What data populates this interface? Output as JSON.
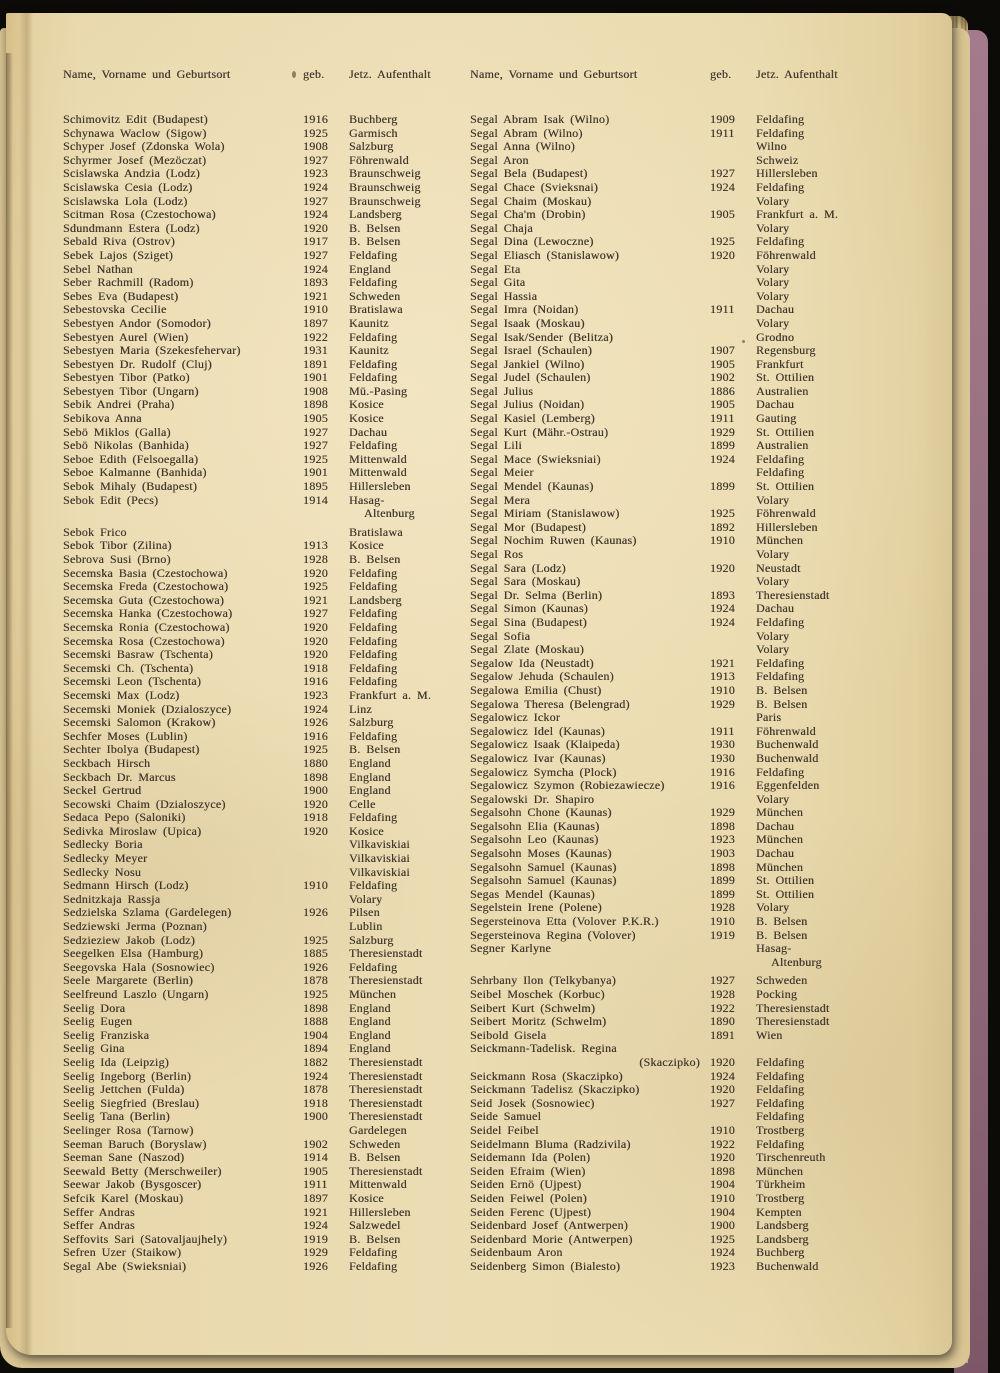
{
  "colors": {
    "paper": "#ead9ae",
    "ink": "#3e352a",
    "cover_edge": "#96707f",
    "page_stack": "#cdb887",
    "background": "#0d0b07"
  },
  "header": {
    "name": "Name, Vorname und Geburtsort",
    "geb": "geb.",
    "residence": "Jetz. Aufenthalt"
  },
  "columns": [
    {
      "entries": [
        {
          "n": "Schimovitz Edit (Budapest)",
          "g": "1916",
          "r": "Buchberg"
        },
        {
          "n": "Schynawa Waclow (Sigow)",
          "g": "1925",
          "r": "Garmisch"
        },
        {
          "n": "Schyper Josef (Zdonska Wola)",
          "g": "1908",
          "r": "Salzburg"
        },
        {
          "n": "Schyrmer Josef (Mezöczat)",
          "g": "1927",
          "r": "Föhrenwald"
        },
        {
          "n": "Scislawska Andzia (Lodz)",
          "g": "1923",
          "r": "Braunschweig"
        },
        {
          "n": "Scislawska Cesia (Lodz)",
          "g": "1924",
          "r": "Braunschweig"
        },
        {
          "n": "Scislawska Lola (Lodz)",
          "g": "1927",
          "r": "Braunschweig"
        },
        {
          "n": "Scitman Rosa (Czestochowa)",
          "g": "1924",
          "r": "Landsberg"
        },
        {
          "n": "Sdundmann Estera (Lodz)",
          "g": "1920",
          "r": "B. Belsen"
        },
        {
          "n": "Sebald Riva (Ostrov)",
          "g": "1917",
          "r": "B. Belsen"
        },
        {
          "n": "Sebek Lajos (Sziget)",
          "g": "1927",
          "r": "Feldafing"
        },
        {
          "n": "Sebel Nathan",
          "g": "1924",
          "r": "England"
        },
        {
          "n": "Seber Rachmill (Radom)",
          "g": "1893",
          "r": "Feldafing"
        },
        {
          "n": "Sebes Eva (Budapest)",
          "g": "1921",
          "r": "Schweden"
        },
        {
          "n": "Sebestovska Cecilie",
          "g": "1910",
          "r": "Bratislawa"
        },
        {
          "n": "Sebestyen Andor (Somodor)",
          "g": "1897",
          "r": "Kaunitz"
        },
        {
          "n": "Sebestyen Aurel (Wien)",
          "g": "1922",
          "r": "Feldafing"
        },
        {
          "n": "Sebestyen Maria (Szekesfehervar)",
          "g": "1931",
          "r": "Kaunitz"
        },
        {
          "n": "Sebestyen Dr. Rudolf (Cluj)",
          "g": "1891",
          "r": "Feldafing"
        },
        {
          "n": "Sebestyen Tibor (Patko)",
          "g": "1901",
          "r": "Feldafing"
        },
        {
          "n": "Sebestyen Tibor (Ungarn)",
          "g": "1908",
          "r": "Mü.-Pasing"
        },
        {
          "n": "Sebik Andrei (Praha)",
          "g": "1898",
          "r": "Kosice"
        },
        {
          "n": "Sebikova Anna",
          "g": "1905",
          "r": "Kosice"
        },
        {
          "n": "Sebö Miklos (Galla)",
          "g": "1927",
          "r": "Dachau"
        },
        {
          "n": "Sebö Nikolas (Banhida)",
          "g": "1927",
          "r": "Feldafing"
        },
        {
          "n": "Seboe Edith (Felsoegalla)",
          "g": "1925",
          "r": "Mittenwald"
        },
        {
          "n": "Seboe Kalmanne (Banhida)",
          "g": "1901",
          "r": "Mittenwald"
        },
        {
          "n": "Sebok Mihaly (Budapest)",
          "g": "1895",
          "r": "Hillersleben"
        },
        {
          "n": "Sebok Edit (Pecs)",
          "g": "1914",
          "r": "Hasag-"
        },
        {
          "n": "",
          "g": "",
          "r": "Altenburg",
          "ind": true,
          "gap": true
        },
        {
          "n": "Sebok Frico",
          "g": "",
          "r": "Bratislawa"
        },
        {
          "n": "Sebok Tibor (Zilina)",
          "g": "1913",
          "r": "Kosice"
        },
        {
          "n": "Sebrova Susi (Brno)",
          "g": "1928",
          "r": "B. Belsen"
        },
        {
          "n": "Secemska Basia (Czestochowa)",
          "g": "1920",
          "r": "Feldafing"
        },
        {
          "n": "Secemska Freda (Czestochowa)",
          "g": "1925",
          "r": "Feldafing"
        },
        {
          "n": "Secemska Guta (Czestochowa)",
          "g": "1921",
          "r": "Landsberg"
        },
        {
          "n": "Secemska Hanka (Czestochowa)",
          "g": "1927",
          "r": "Feldafing"
        },
        {
          "n": "Secemska Ronia (Czestochowa)",
          "g": "1920",
          "r": "Feldafing"
        },
        {
          "n": "Secemska Rosa (Czestochowa)",
          "g": "1920",
          "r": "Feldafing"
        },
        {
          "n": "Secemski Basraw (Tschenta)",
          "g": "1920",
          "r": "Feldafing"
        },
        {
          "n": "Secemski Ch. (Tschenta)",
          "g": "1918",
          "r": "Feldafing"
        },
        {
          "n": "Secemski Leon (Tschenta)",
          "g": "1916",
          "r": "Feldafing"
        },
        {
          "n": "Secemski Max (Lodz)",
          "g": "1923",
          "r": "Frankfurt a. M."
        },
        {
          "n": "Secemski Moniek (Dzialoszyce)",
          "g": "1924",
          "r": "Linz"
        },
        {
          "n": "Secemski Salomon (Krakow)",
          "g": "1926",
          "r": "Salzburg"
        },
        {
          "n": "Sechfer Moses (Lublin)",
          "g": "1916",
          "r": "Feldafing"
        },
        {
          "n": "Sechter Ibolya (Budapest)",
          "g": "1925",
          "r": "B. Belsen"
        },
        {
          "n": "Seckbach Hirsch",
          "g": "1880",
          "r": "England"
        },
        {
          "n": "Seckbach Dr. Marcus",
          "g": "1898",
          "r": "England"
        },
        {
          "n": "Seckel Gertrud",
          "g": "1900",
          "r": "England"
        },
        {
          "n": "Secowski Chaim (Dzialoszyce)",
          "g": "1920",
          "r": "Celle"
        },
        {
          "n": "Sedaca Pepo (Saloniki)",
          "g": "1918",
          "r": "Feldafing"
        },
        {
          "n": "Sedivka Miroslaw (Upica)",
          "g": "1920",
          "r": "Kosice"
        },
        {
          "n": "Sedlecky Boria",
          "g": "",
          "r": "Vilkaviskiai"
        },
        {
          "n": "Sedlecky Meyer",
          "g": "",
          "r": "Vilkaviskiai"
        },
        {
          "n": "Sedlecky Nosu",
          "g": "",
          "r": "Vilkaviskiai"
        },
        {
          "n": "Sedmann Hirsch (Lodz)",
          "g": "1910",
          "r": "Feldafing"
        },
        {
          "n": "Sednitzkaja Rassja",
          "g": "",
          "r": "Volary"
        },
        {
          "n": "Sedzielska Szlama (Gardelegen)",
          "g": "1926",
          "r": "Pilsen"
        },
        {
          "n": "Sedziewski Jerma (Poznan)",
          "g": "",
          "r": "Lublin"
        },
        {
          "n": "Sedzieziew Jakob (Lodz)",
          "g": "1925",
          "r": "Salzburg"
        },
        {
          "n": "Seegelken Elsa (Hamburg)",
          "g": "1885",
          "r": "Theresienstadt"
        },
        {
          "n": "Seegovska Hala (Sosnowiec)",
          "g": "1926",
          "r": "Feldafing"
        },
        {
          "n": "Seele Margarete (Berlin)",
          "g": "1878",
          "r": "Theresienstadt"
        },
        {
          "n": "Seelfreund Laszlo (Ungarn)",
          "g": "1925",
          "r": "München"
        },
        {
          "n": "Seelig Dora",
          "g": "1898",
          "r": "England"
        },
        {
          "n": "Seelig Eugen",
          "g": "1888",
          "r": "England"
        },
        {
          "n": "Seelig Franziska",
          "g": "1904",
          "r": "England"
        },
        {
          "n": "Seelig Gina",
          "g": "1894",
          "r": "England"
        },
        {
          "n": "Seelig Ida (Leipzig)",
          "g": "1882",
          "r": "Theresienstadt"
        },
        {
          "n": "Seelig Ingeborg (Berlin)",
          "g": "1924",
          "r": "Theresienstadt"
        },
        {
          "n": "Seelig Jettchen (Fulda)",
          "g": "1878",
          "r": "Theresienstadt"
        },
        {
          "n": "Seelig Siegfried (Breslau)",
          "g": "1918",
          "r": "Theresienstadt"
        },
        {
          "n": "Seelig Tana (Berlin)",
          "g": "1900",
          "r": "Theresienstadt"
        },
        {
          "n": "Seelinger Rosa (Tarnow)",
          "g": "",
          "r": "Gardelegen"
        },
        {
          "n": "Seeman Baruch (Boryslaw)",
          "g": "1902",
          "r": "Schweden"
        },
        {
          "n": "Seeman Sane (Naszod)",
          "g": "1914",
          "r": "B. Belsen"
        },
        {
          "n": "Seewald Betty (Merschweiler)",
          "g": "1905",
          "r": "Theresienstadt"
        },
        {
          "n": "Seewar Jakob (Bysgoscer)",
          "g": "1911",
          "r": "Mittenwald"
        },
        {
          "n": "Sefcik Karel (Moskau)",
          "g": "1897",
          "r": "Kosice"
        },
        {
          "n": "Seffer Andras",
          "g": "1921",
          "r": "Hillersleben"
        },
        {
          "n": "Seffer Andras",
          "g": "1924",
          "r": "Salzwedel"
        },
        {
          "n": "Seffovits Sari (Satovaljaujhely)",
          "g": "1919",
          "r": "B. Belsen"
        },
        {
          "n": "Sefren Uzer (Staikow)",
          "g": "1929",
          "r": "Feldafing"
        },
        {
          "n": "Segal Abe (Swieksniai)",
          "g": "1926",
          "r": "Feldafing"
        }
      ]
    },
    {
      "entries": [
        {
          "n": "Segal Abram Isak (Wilno)",
          "g": "1909",
          "r": "Feldafing"
        },
        {
          "n": "Segal Abram (Wilno)",
          "g": "1911",
          "r": "Feldafing"
        },
        {
          "n": "Segal Anna (Wilno)",
          "g": "",
          "r": "Wilno"
        },
        {
          "n": "Segal Aron",
          "g": "",
          "r": "Schweiz"
        },
        {
          "n": "Segal Bela (Budapest)",
          "g": "1927",
          "r": "Hillersleben"
        },
        {
          "n": "Segal Chace (Svieksnai)",
          "g": "1924",
          "r": "Feldafing"
        },
        {
          "n": "Segal Chaim (Moskau)",
          "g": "",
          "r": "Volary"
        },
        {
          "n": "Segal Cha'm (Drobin)",
          "g": "1905",
          "r": "Frankfurt a. M."
        },
        {
          "n": "Segal Chaja",
          "g": "",
          "r": "Volary"
        },
        {
          "n": "Segal Dina (Lewoczne)",
          "g": "1925",
          "r": "Feldafing"
        },
        {
          "n": "Segal Eliasch (Stanislawow)",
          "g": "1920",
          "r": "Föhrenwald"
        },
        {
          "n": "Segal Eta",
          "g": "",
          "r": "Volary"
        },
        {
          "n": "Segal Gita",
          "g": "",
          "r": "Volary"
        },
        {
          "n": "Segal Hassia",
          "g": "",
          "r": "Volary"
        },
        {
          "n": "Segal Imra (Noidan)",
          "g": "1911",
          "r": "Dachau"
        },
        {
          "n": "Segal Isaak (Moskau)",
          "g": "",
          "r": "Volary"
        },
        {
          "n": "Segal Isak/Sender (Belitza)",
          "g": "",
          "r": "Grodno"
        },
        {
          "n": "Segal Israel (Schaulen)",
          "g": "1907",
          "r": "Regensburg"
        },
        {
          "n": "Segal Jankiel (Wilno)",
          "g": "1905",
          "r": "Frankfurt"
        },
        {
          "n": "Segal Judel (Schaulen)",
          "g": "1902",
          "r": "St. Ottilien"
        },
        {
          "n": "Segal Julius",
          "g": "1886",
          "r": "Australien"
        },
        {
          "n": "Segal Julius (Noidan)",
          "g": "1905",
          "r": "Dachau"
        },
        {
          "n": "Segal Kasiel (Lemberg)",
          "g": "1911",
          "r": "Gauting"
        },
        {
          "n": "Segal Kurt (Mähr.-Ostrau)",
          "g": "1929",
          "r": "St. Ottilien"
        },
        {
          "n": "Segal Lili",
          "g": "1899",
          "r": "Australien"
        },
        {
          "n": "Segal Mace (Swieksniai)",
          "g": "1924",
          "r": "Feldafing"
        },
        {
          "n": "Segal Meier",
          "g": "",
          "r": "Feldafing"
        },
        {
          "n": "Segal Mendel (Kaunas)",
          "g": "1899",
          "r": "St. Ottilien"
        },
        {
          "n": "Segal Mera",
          "g": "",
          "r": "Volary"
        },
        {
          "n": "Segal Miriam (Stanislawow)",
          "g": "1925",
          "r": "Föhrenwald"
        },
        {
          "n": "Segal Mor (Budapest)",
          "g": "1892",
          "r": "Hillersleben"
        },
        {
          "n": "Segal Nochim Ruwen (Kaunas)",
          "g": "1910",
          "r": "München"
        },
        {
          "n": "Segal Ros",
          "g": "",
          "r": "Volary"
        },
        {
          "n": "Segal Sara (Lodz)",
          "g": "1920",
          "r": "Neustadt"
        },
        {
          "n": "Segal Sara (Moskau)",
          "g": "",
          "r": "Volary"
        },
        {
          "n": "Segal Dr. Selma (Berlin)",
          "g": "1893",
          "r": "Theresienstadt"
        },
        {
          "n": "Segal Simon (Kaunas)",
          "g": "1924",
          "r": "Dachau"
        },
        {
          "n": "Segal Sina (Budapest)",
          "g": "1924",
          "r": "Feldafing"
        },
        {
          "n": "Segal Sofia",
          "g": "",
          "r": "Volary"
        },
        {
          "n": "Segal Zlate (Moskau)",
          "g": "",
          "r": "Volary"
        },
        {
          "n": "Segalow Ida (Neustadt)",
          "g": "1921",
          "r": "Feldafing"
        },
        {
          "n": "Segalow Jehuda (Schaulen)",
          "g": "1913",
          "r": "Feldafing"
        },
        {
          "n": "Segalowa Emilia (Chust)",
          "g": "1910",
          "r": "B. Belsen"
        },
        {
          "n": "Segalowa Theresa (Belengrad)",
          "g": "1929",
          "r": "B. Belsen"
        },
        {
          "n": "Segalowicz Ickor",
          "g": "",
          "r": "Paris"
        },
        {
          "n": "Segalowicz Idel (Kaunas)",
          "g": "1911",
          "r": "Föhrenwald"
        },
        {
          "n": "Segalowicz Isaak (Klaipeda)",
          "g": "1930",
          "r": "Buchenwald"
        },
        {
          "n": "Segalowicz Ivar (Kaunas)",
          "g": "1930",
          "r": "Buchenwald"
        },
        {
          "n": "Segalowicz Symcha (Plock)",
          "g": "1916",
          "r": "Feldafing"
        },
        {
          "n": "Segalowicz Szymon (Robiezawiecze)",
          "g": "1916",
          "r": "Eggenfelden"
        },
        {
          "n": "Segalowski Dr. Shapiro",
          "g": "",
          "r": "Volary"
        },
        {
          "n": "Segalsohn Chone (Kaunas)",
          "g": "1929",
          "r": "München"
        },
        {
          "n": "Segalsohn Elia (Kaunas)",
          "g": "1898",
          "r": "Dachau"
        },
        {
          "n": "Segalsohn Leo (Kaunas)",
          "g": "1923",
          "r": "München"
        },
        {
          "n": "Segalsohn Moses (Kaunas)",
          "g": "1903",
          "r": "Dachau"
        },
        {
          "n": "Segalsohn Samuel (Kaunas)",
          "g": "1898",
          "r": "München"
        },
        {
          "n": "Segalsohn Samuel (Kaunas)",
          "g": "1899",
          "r": "St. Ottilien"
        },
        {
          "n": "Segas Mendel (Kaunas)",
          "g": "1899",
          "r": "St. Ottilien"
        },
        {
          "n": "Segelstein Irene (Polene)",
          "g": "1928",
          "r": "Volary"
        },
        {
          "n": "Segersteinova Etta (Volover P.K.R.)",
          "g": "1910",
          "r": "B. Belsen"
        },
        {
          "n": "Segersteinova Regina (Volover)",
          "g": "1919",
          "r": "B. Belsen"
        },
        {
          "n": "Segner Karlyne",
          "g": "",
          "r": "Hasag-"
        },
        {
          "n": "",
          "g": "",
          "r": "Altenburg",
          "ind": true,
          "gap": true
        },
        {
          "n": "Sehrbany Ilon (Telkybanya)",
          "g": "1927",
          "r": "Schweden"
        },
        {
          "n": "Seibel Moschek (Korbuc)",
          "g": "1928",
          "r": "Pocking"
        },
        {
          "n": "Seibert Kurt (Schwelm)",
          "g": "1922",
          "r": "Theresienstadt"
        },
        {
          "n": "Seibert Moritz (Schwelm)",
          "g": "1890",
          "r": "Theresienstadt"
        },
        {
          "n": "Seibold Gisela",
          "g": "1891",
          "r": "Wien"
        },
        {
          "n": "Seickmann-Tadelisk. Regina",
          "g": "",
          "r": ""
        },
        {
          "n": "(Skaczipko)",
          "g": "1920",
          "r": "Feldafing",
          "rn": true
        },
        {
          "n": "Seickmann Rosa (Skaczipko)",
          "g": "1924",
          "r": "Feldafing"
        },
        {
          "n": "Seickmann Tadelisz (Skaczipko)",
          "g": "1920",
          "r": "Feldafing"
        },
        {
          "n": "Seid Josek (Sosnowiec)",
          "g": "1927",
          "r": "Feldafing"
        },
        {
          "n": "Seide Samuel",
          "g": "",
          "r": "Feldafing"
        },
        {
          "n": "Seidel Feibel",
          "g": "1910",
          "r": "Trostberg"
        },
        {
          "n": "Seidelmann Bluma (Radzivila)",
          "g": "1922",
          "r": "Feldafing"
        },
        {
          "n": "Seidemann Ida (Polen)",
          "g": "1920",
          "r": "Tirschenreuth"
        },
        {
          "n": "Seiden Efraim (Wien)",
          "g": "1898",
          "r": "München"
        },
        {
          "n": "Seiden Ernö (Ujpest)",
          "g": "1904",
          "r": "Türkheim"
        },
        {
          "n": "Seiden Feiwel (Polen)",
          "g": "1910",
          "r": "Trostberg"
        },
        {
          "n": "Seiden Ferenc (Ujpest)",
          "g": "1904",
          "r": "Kempten"
        },
        {
          "n": "Seidenbard Josef (Antwerpen)",
          "g": "1900",
          "r": "Landsberg"
        },
        {
          "n": "Seidenbard Morie (Antwerpen)",
          "g": "1925",
          "r": "Landsberg"
        },
        {
          "n": "Seidenbaum Aron",
          "g": "1924",
          "r": "Buchberg"
        },
        {
          "n": "Seidenberg Simon (Bialesto)",
          "g": "1923",
          "r": "Buchenwald"
        }
      ]
    }
  ]
}
